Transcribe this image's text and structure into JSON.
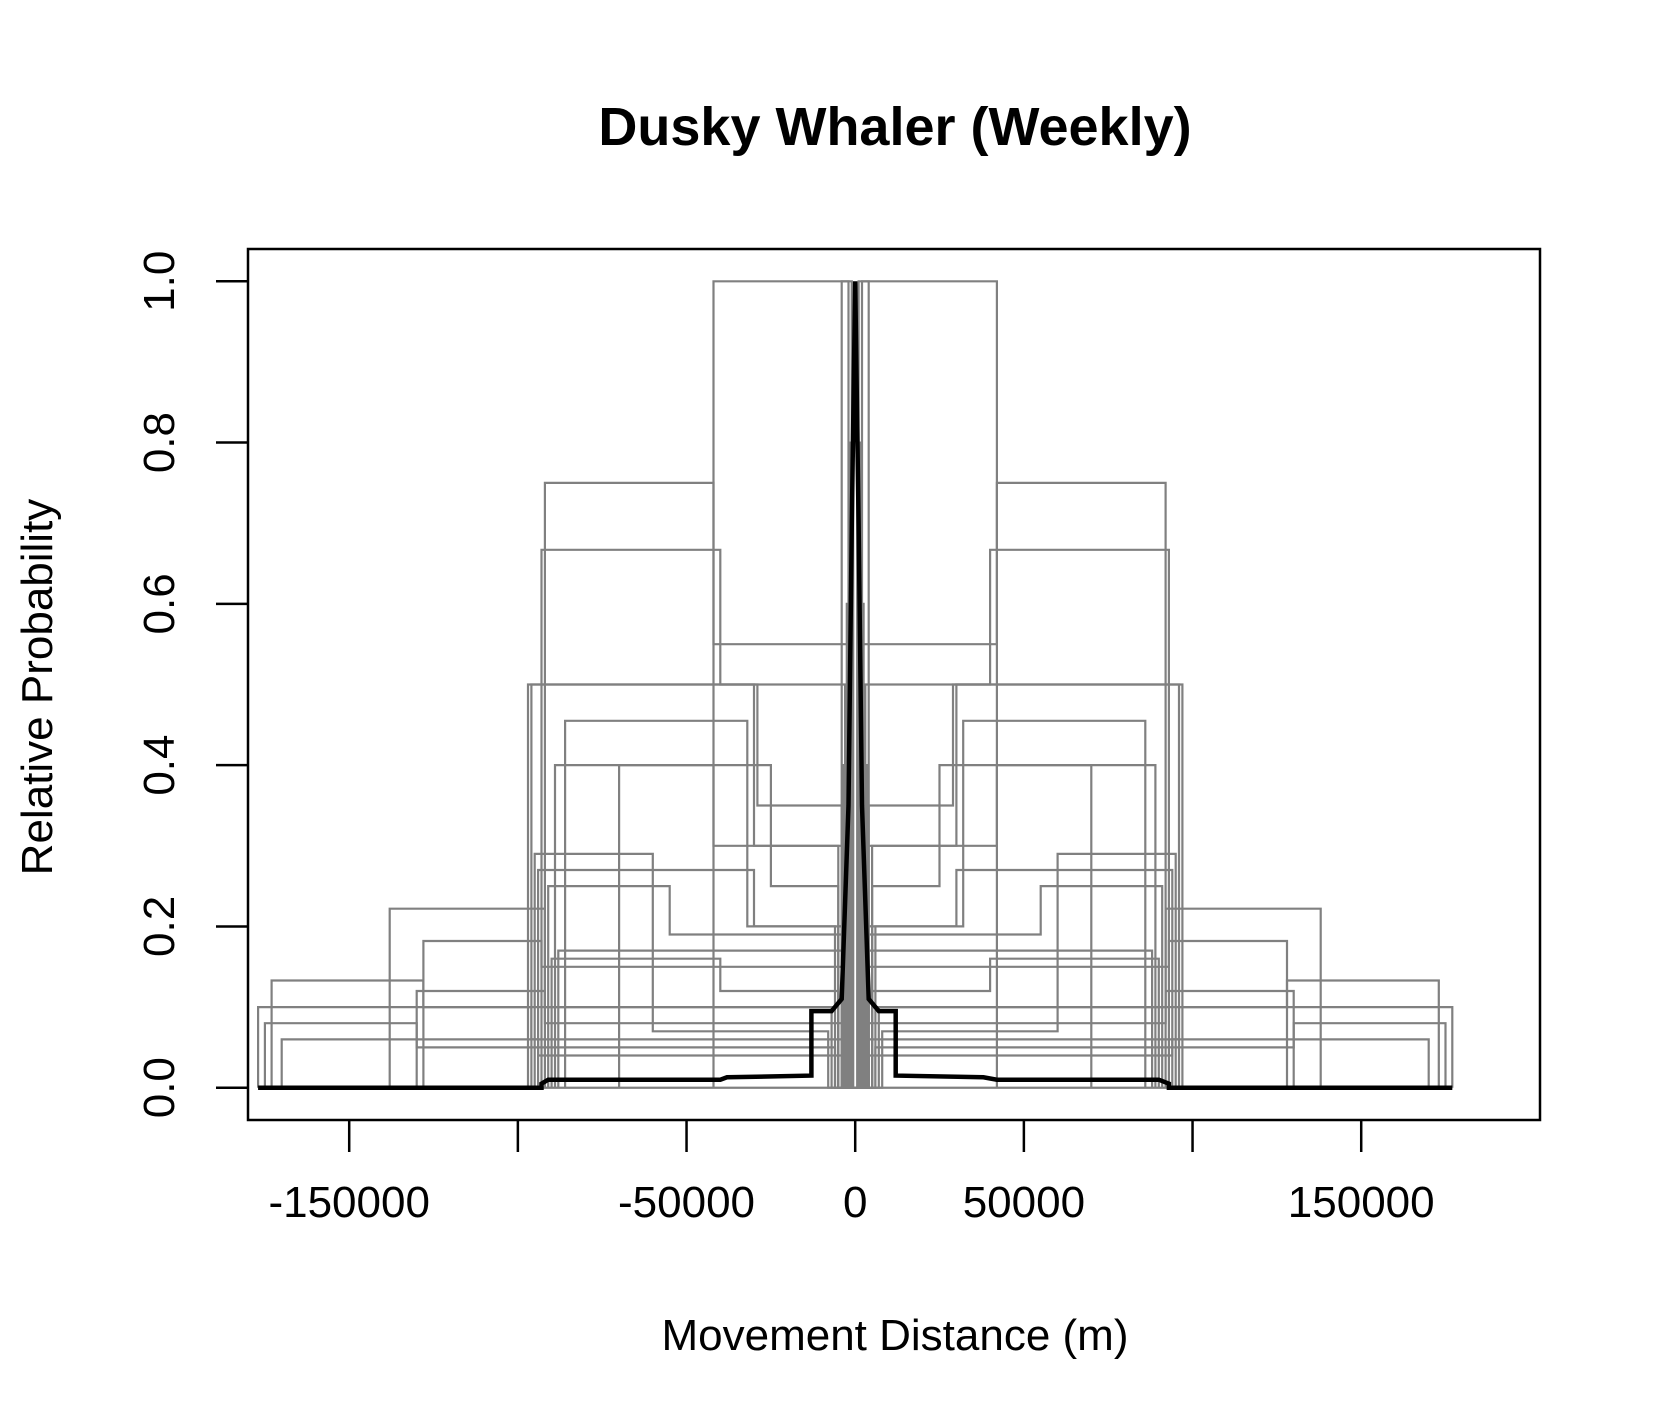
{
  "chart_data": {
    "type": "line",
    "title": "Dusky Whaler (Weekly)",
    "xlabel": "Movement Distance (m)",
    "ylabel": "Relative Probability",
    "xlim": [
      -180000,
      203000
    ],
    "ylim": [
      -0.04,
      1.04
    ],
    "x_ticks": [
      -150000,
      -100000,
      -50000,
      0,
      50000,
      100000,
      150000
    ],
    "x_tick_labels": [
      "-150000",
      "",
      "-50000",
      "0",
      "50000",
      "",
      "150000"
    ],
    "y_ticks": [
      0.0,
      0.2,
      0.4,
      0.6,
      0.8,
      1.0
    ],
    "y_tick_labels": [
      "0.0",
      "0.2",
      "0.4",
      "0.6",
      "0.8",
      "1.0"
    ],
    "grid": false,
    "colors": {
      "individual": "#808080",
      "mean": "#000000"
    },
    "individual_profiles": [
      {
        "half_widths": [
          42000,
          2000
        ],
        "heights": [
          1.0,
          0.0
        ]
      },
      {
        "half_widths": [
          92000,
          42000,
          2000
        ],
        "heights": [
          0.75,
          0.55,
          0.0
        ]
      },
      {
        "half_widths": [
          93000,
          40000,
          3000
        ],
        "heights": [
          0.667,
          0.5,
          0.0
        ]
      },
      {
        "half_widths": [
          97000,
          30000,
          5000
        ],
        "heights": [
          0.5,
          0.3,
          0.0
        ]
      },
      {
        "half_widths": [
          96000,
          29000,
          4000
        ],
        "heights": [
          0.5,
          0.35,
          0.0
        ]
      },
      {
        "half_widths": [
          86000,
          32000,
          6000
        ],
        "heights": [
          0.455,
          0.2,
          0.0
        ]
      },
      {
        "half_widths": [
          89000,
          42000,
          3000
        ],
        "heights": [
          0.4,
          0.3,
          0.0
        ]
      },
      {
        "half_widths": [
          70000,
          25000,
          5000
        ],
        "heights": [
          0.4,
          0.25,
          0.0
        ]
      },
      {
        "half_widths": [
          138000,
          92000,
          7000
        ],
        "heights": [
          0.222,
          0.1,
          0.0
        ]
      },
      {
        "half_widths": [
          128000,
          93000,
          4000
        ],
        "heights": [
          0.182,
          0.15,
          0.0
        ]
      },
      {
        "half_widths": [
          173000,
          128000,
          5000
        ],
        "heights": [
          0.133,
          0.1,
          0.0
        ]
      },
      {
        "half_widths": [
          177000,
          96000,
          3000
        ],
        "heights": [
          0.1,
          0.06,
          0.0
        ]
      },
      {
        "half_widths": [
          175000,
          130000,
          6000
        ],
        "heights": [
          0.08,
          0.05,
          0.0
        ]
      },
      {
        "half_widths": [
          95000,
          60000,
          3000
        ],
        "heights": [
          0.29,
          0.17,
          0.0
        ]
      },
      {
        "half_widths": [
          94000,
          30000,
          2000
        ],
        "heights": [
          0.27,
          0.2,
          0.0
        ]
      },
      {
        "half_widths": [
          91000,
          55000,
          4000
        ],
        "heights": [
          0.25,
          0.19,
          0.0
        ]
      },
      {
        "half_widths": [
          90000,
          40000,
          5000
        ],
        "heights": [
          0.16,
          0.12,
          0.0
        ]
      },
      {
        "half_widths": [
          88000,
          60000,
          8000
        ],
        "heights": [
          0.17,
          0.07,
          0.0
        ]
      },
      {
        "half_widths": [
          130000,
          92000,
          3000
        ],
        "heights": [
          0.12,
          0.08,
          0.0
        ]
      },
      {
        "half_widths": [
          170000,
          94000,
          4000
        ],
        "heights": [
          0.06,
          0.04,
          0.0
        ]
      },
      {
        "half_widths": [
          5000,
          2000
        ],
        "heights": [
          0.2,
          0.0
        ]
      },
      {
        "half_widths": [
          3500,
          1500
        ],
        "heights": [
          0.4,
          0.0
        ]
      },
      {
        "half_widths": [
          2500,
          1000
        ],
        "heights": [
          0.6,
          0.0
        ]
      },
      {
        "half_widths": [
          1500,
          600
        ],
        "heights": [
          0.8,
          0.0
        ]
      },
      {
        "half_widths": [
          4000,
          1000
        ],
        "heights": [
          1.0,
          0.0
        ]
      }
    ],
    "mean_profile": {
      "x": [
        -177000,
        -93000,
        -93000,
        -91000,
        -40000,
        -38000,
        -13000,
        -13000,
        -7000,
        -4000,
        -2000,
        -1000,
        0,
        1000,
        2000,
        4000,
        7000,
        12000,
        12000,
        38000,
        42000,
        90000,
        93000,
        93000,
        177000
      ],
      "y": [
        0.0,
        0.0,
        0.005,
        0.01,
        0.01,
        0.013,
        0.015,
        0.095,
        0.095,
        0.11,
        0.35,
        0.7,
        1.0,
        0.7,
        0.35,
        0.11,
        0.095,
        0.095,
        0.015,
        0.013,
        0.01,
        0.01,
        0.005,
        0.0,
        0.0
      ]
    }
  }
}
